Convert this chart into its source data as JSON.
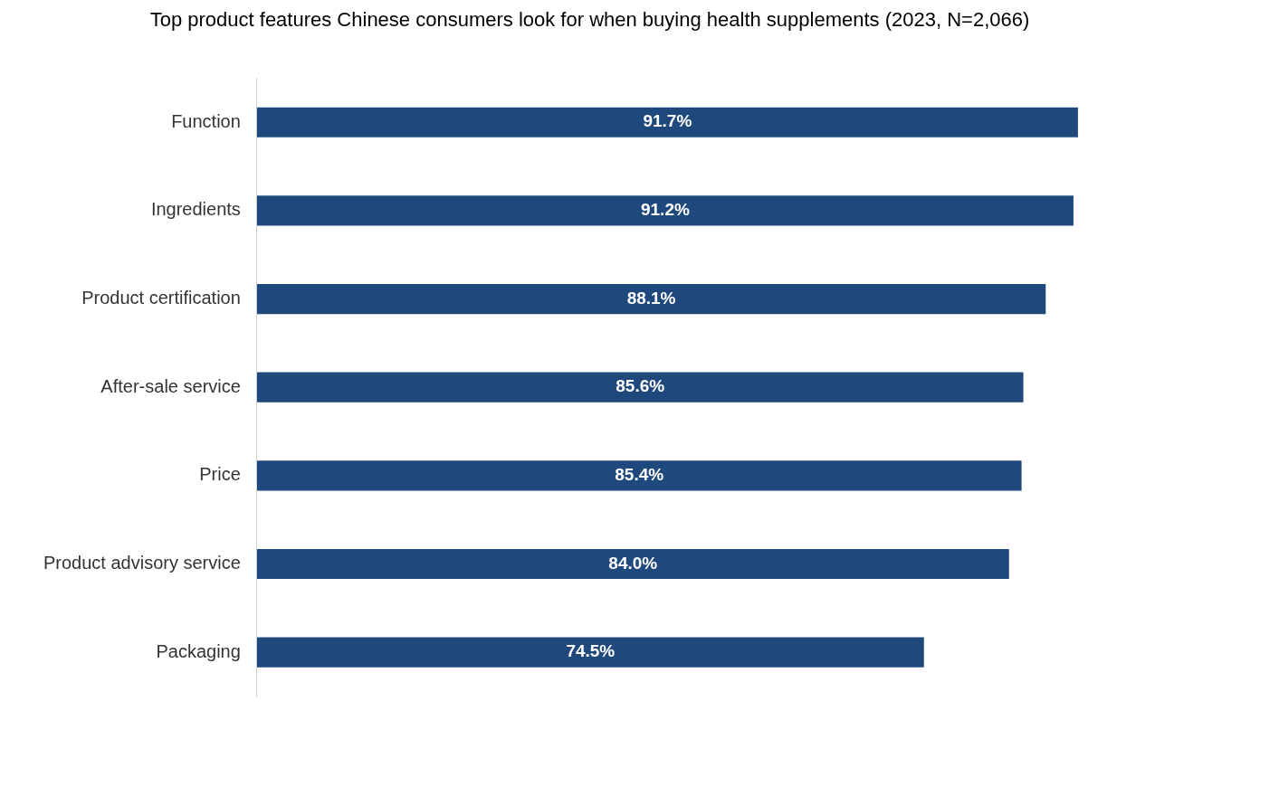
{
  "chart_data": {
    "type": "bar",
    "orientation": "horizontal",
    "title": "Top product features Chinese consumers look for when buying health supplements (2023, N=2,066)",
    "categories": [
      "Function",
      "Ingredients",
      "Product certification",
      "After-sale service",
      "Price",
      "Product advisory service",
      "Packaging"
    ],
    "values": [
      91.7,
      91.2,
      88.1,
      85.6,
      85.4,
      84.0,
      74.5
    ],
    "value_labels": [
      "91.7%",
      "91.2%",
      "88.1%",
      "85.6%",
      "85.4%",
      "84.0%",
      "74.5%"
    ],
    "color": "#1f497d",
    "tick_labels": "y",
    "grid": false,
    "legend": false
  }
}
